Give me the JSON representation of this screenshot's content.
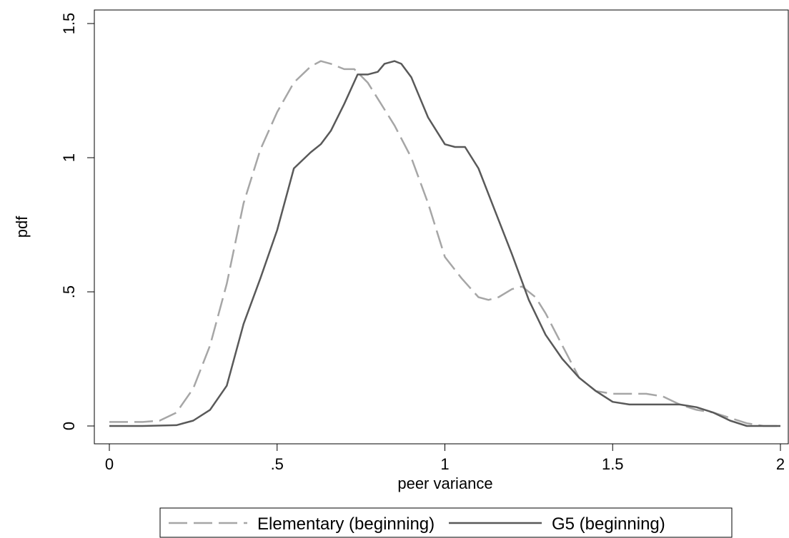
{
  "chart_data": {
    "type": "line",
    "title": "",
    "xlabel": "peer variance",
    "ylabel": "pdf",
    "xlim": [
      0,
      2
    ],
    "ylim": [
      0,
      1.5
    ],
    "x_ticks": [
      {
        "value": 0,
        "label": "0"
      },
      {
        "value": 0.5,
        "label": ".5"
      },
      {
        "value": 1,
        "label": "1"
      },
      {
        "value": 1.5,
        "label": "1.5"
      },
      {
        "value": 2,
        "label": "2"
      }
    ],
    "y_ticks": [
      {
        "value": 0,
        "label": "0"
      },
      {
        "value": 0.5,
        "label": ".5"
      },
      {
        "value": 1,
        "label": "1"
      },
      {
        "value": 1.5,
        "label": "1.5"
      }
    ],
    "grid": false,
    "legend_position": "bottom",
    "series": [
      {
        "name": "Elementary (beginning)",
        "color": "#a6a6a6",
        "dash": "dashed",
        "x": [
          0,
          0.1,
          0.15,
          0.2,
          0.25,
          0.3,
          0.35,
          0.4,
          0.45,
          0.5,
          0.55,
          0.6,
          0.63,
          0.66,
          0.7,
          0.73,
          0.77,
          0.8,
          0.85,
          0.9,
          0.95,
          1.0,
          1.05,
          1.1,
          1.13,
          1.16,
          1.2,
          1.23,
          1.27,
          1.3,
          1.35,
          1.4,
          1.45,
          1.5,
          1.55,
          1.6,
          1.65,
          1.7,
          1.75,
          1.8,
          1.85,
          1.9,
          1.95,
          2.0
        ],
        "y": [
          0.015,
          0.015,
          0.02,
          0.05,
          0.14,
          0.3,
          0.53,
          0.83,
          1.03,
          1.17,
          1.28,
          1.34,
          1.36,
          1.35,
          1.33,
          1.33,
          1.28,
          1.22,
          1.12,
          1.0,
          0.83,
          0.63,
          0.55,
          0.48,
          0.47,
          0.48,
          0.51,
          0.52,
          0.48,
          0.42,
          0.3,
          0.18,
          0.13,
          0.12,
          0.12,
          0.12,
          0.11,
          0.08,
          0.06,
          0.05,
          0.03,
          0.01,
          0.0,
          0.0
        ]
      },
      {
        "name": "G5 (beginning)",
        "color": "#595959",
        "dash": "solid",
        "x": [
          0,
          0.1,
          0.2,
          0.25,
          0.3,
          0.35,
          0.4,
          0.45,
          0.5,
          0.55,
          0.6,
          0.63,
          0.66,
          0.7,
          0.74,
          0.77,
          0.8,
          0.82,
          0.85,
          0.87,
          0.9,
          0.92,
          0.95,
          1.0,
          1.03,
          1.06,
          1.1,
          1.15,
          1.2,
          1.25,
          1.3,
          1.35,
          1.4,
          1.45,
          1.5,
          1.55,
          1.6,
          1.65,
          1.7,
          1.75,
          1.8,
          1.85,
          1.9,
          1.95,
          2.0
        ],
        "y": [
          0.0,
          0.0,
          0.003,
          0.02,
          0.06,
          0.15,
          0.38,
          0.55,
          0.73,
          0.96,
          1.02,
          1.05,
          1.1,
          1.2,
          1.31,
          1.31,
          1.32,
          1.35,
          1.36,
          1.35,
          1.3,
          1.24,
          1.15,
          1.05,
          1.04,
          1.04,
          0.96,
          0.8,
          0.64,
          0.47,
          0.34,
          0.25,
          0.18,
          0.13,
          0.09,
          0.08,
          0.08,
          0.08,
          0.08,
          0.07,
          0.05,
          0.02,
          0.0,
          0.0,
          0.0
        ]
      }
    ]
  }
}
